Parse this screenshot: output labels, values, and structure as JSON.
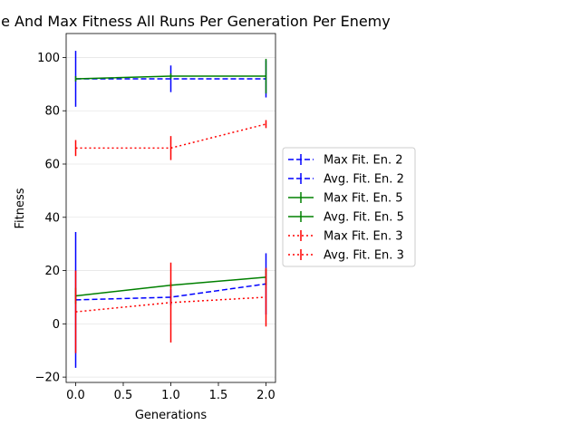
{
  "chart_data": {
    "type": "line",
    "title": "Average And Max Fitness All Runs Per Generation Per Enemy",
    "xlabel": "Generations",
    "ylabel": "Fitness",
    "xlim": [
      -0.1,
      2.1
    ],
    "ylim": [
      -22,
      109
    ],
    "xticks": [
      0.0,
      0.5,
      1.0,
      1.5,
      2.0
    ],
    "xtick_labels": [
      "0.0",
      "0.5",
      "1.0",
      "1.5",
      "2.0"
    ],
    "yticks": [
      -20,
      0,
      20,
      40,
      60,
      80,
      100
    ],
    "ytick_labels": [
      "−20",
      "0",
      "20",
      "40",
      "60",
      "80",
      "100"
    ],
    "grid": "horizontal",
    "legend_placement": "right, outside plot",
    "x": [
      0,
      1,
      2
    ],
    "series": [
      {
        "name": "Max Fit. En. 2",
        "color": "#0000ff",
        "style": "dashed",
        "values": [
          92,
          92,
          92
        ],
        "yerr": [
          10.5,
          5,
          7
        ]
      },
      {
        "name": "Avg. Fit. En. 2",
        "color": "#0000ff",
        "style": "dashed",
        "values": [
          9,
          10,
          15
        ],
        "yerr": [
          25.5,
          3,
          11.5
        ]
      },
      {
        "name": "Max Fit. En. 5",
        "color": "#008000",
        "style": "solid",
        "values": [
          92,
          93,
          93
        ],
        "yerr": [
          1,
          1,
          6.5
        ]
      },
      {
        "name": "Avg. Fit. En. 5",
        "color": "#008000",
        "style": "solid",
        "values": [
          10.5,
          14.5,
          17.5
        ],
        "yerr": [
          3,
          1,
          3
        ]
      },
      {
        "name": "Max Fit. En. 3",
        "color": "#ff0000",
        "style": "dotted",
        "values": [
          66,
          66,
          75
        ],
        "yerr": [
          3,
          4.5,
          1.5
        ]
      },
      {
        "name": "Avg. Fit. En. 3",
        "color": "#ff0000",
        "style": "dotted",
        "values": [
          4.5,
          8,
          10
        ],
        "yerr": [
          15.5,
          15,
          11
        ]
      }
    ]
  }
}
